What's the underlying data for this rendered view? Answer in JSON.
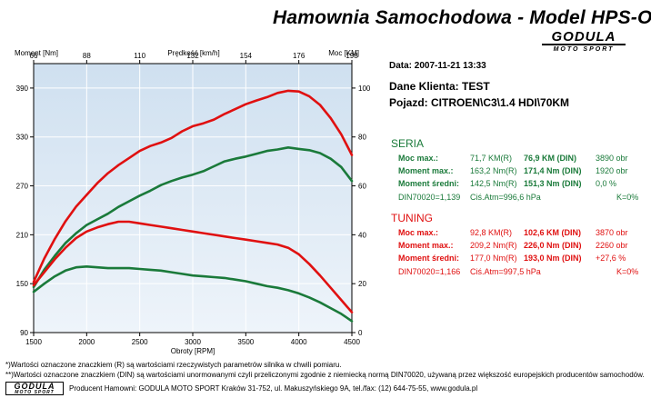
{
  "header": {
    "title": "Hamownia Samochodowa  -  Model HPS-O",
    "brand_main": "GODULA",
    "brand_sub": "MOTO SPORT"
  },
  "info": {
    "date": "Data: 2007-11-21  13:33",
    "client": "Dane Klienta: TEST",
    "vehicle": "Pojazd: CITROEN\\C3\\1.4 HDI\\70KM"
  },
  "seria": {
    "title": "SERIA",
    "rows": [
      {
        "label": "Moc max.:",
        "v1": "71,7 KM(R)",
        "v2": "76,9 KM (DIN)",
        "v3": "3890 obr"
      },
      {
        "label": "Moment max.:",
        "v1": "163,2 Nm(R)",
        "v2": "171,4 Nm (DIN)",
        "v3": "1920 obr"
      },
      {
        "label": "Moment średni:",
        "v1": "142,5 Nm(R)",
        "v2": "151,3 Nm (DIN)",
        "v3": "0,0 %"
      }
    ],
    "din": {
      "a": "DIN70020=1,139",
      "b": "Ciś.Atm=996,6 hPa",
      "c": "K=0%"
    }
  },
  "tuning": {
    "title": "TUNING",
    "rows": [
      {
        "label": "Moc max.:",
        "v1": "92,8 KM(R)",
        "v2": "102,6 KM (DIN)",
        "v3": "3870 obr"
      },
      {
        "label": "Moment max.:",
        "v1": "209,2 Nm(R)",
        "v2": "226,0 Nm (DIN)",
        "v3": "2260 obr"
      },
      {
        "label": "Moment średni:",
        "v1": "177,0 Nm(R)",
        "v2": "193,0 Nm (DIN)",
        "v3": "+27,6 %"
      }
    ],
    "din": {
      "a": "DIN70020=1,166",
      "b": "Ciś.Atm=997,5 hPa",
      "c": "K=0%"
    }
  },
  "footer": {
    "note1": "*)Wartości oznaczone znaczkiem (R) są wartościami rzeczywistych parametrów silnika w chwili pomiaru.",
    "note2": "**)Wartości oznaczone znaczkiem (DIN) są wartościami unormowanymi czyli przeliczonymi zgodnie z niemiecką normą DIN70020, używaną przez większość europejskich producentów samochodów.",
    "logo_main": "GODULA",
    "logo_sub": "MOTO SPORT",
    "producer": "Producent Hamowni: GODULA MOTO SPORT Kraków 31-752, ul. Makuszyńskiego 9A, tel./fax: (12) 644-75-55, www.godula.pl"
  },
  "colors": {
    "seria": "#1a7a3a",
    "tuning": "#e01010",
    "plot_bg_top": "#cfe0f0",
    "plot_bg_bottom": "#eef4fa"
  },
  "chart_data": {
    "type": "line",
    "xlabel": "Obroty [RPM]",
    "xlim": [
      1500,
      4500
    ],
    "xticks": [
      1500,
      2000,
      2500,
      3000,
      3500,
      4000,
      4500
    ],
    "x_top_label": "Prędkość [km/h]",
    "x_top_ticks": [
      "66",
      "88",
      "110",
      "132",
      "154",
      "176",
      "198"
    ],
    "y_left_label": "Moment [Nm]",
    "y_left_lim": [
      90,
      420
    ],
    "y_left_ticks": [
      90,
      150,
      210,
      270,
      330,
      390
    ],
    "y_right_label": "Moc [KM]",
    "y_right_lim": [
      0,
      110
    ],
    "y_right_ticks": [
      0,
      20,
      40,
      60,
      80,
      100
    ],
    "grid": true,
    "x": [
      1500,
      1600,
      1700,
      1800,
      1900,
      2000,
      2100,
      2200,
      2300,
      2400,
      2500,
      2600,
      2700,
      2800,
      2900,
      3000,
      3100,
      3200,
      3300,
      3400,
      3500,
      3600,
      3700,
      3800,
      3900,
      4000,
      4100,
      4200,
      4300,
      4400,
      4500
    ],
    "series": [
      {
        "name": "TUNING",
        "quantity": "power",
        "axis": "right",
        "values": [
          20.7,
          30.3,
          38.3,
          45.5,
          51.5,
          56.3,
          61.1,
          65.2,
          68.5,
          71.4,
          74.3,
          76.3,
          77.7,
          79.6,
          82.3,
          84.4,
          85.6,
          87.1,
          89.4,
          91.4,
          93.4,
          94.9,
          96.3,
          98.0,
          98.9,
          98.6,
          96.6,
          93.1,
          87.7,
          81.1,
          72.6
        ]
      },
      {
        "name": "SERIA",
        "quantity": "power",
        "axis": "right",
        "values": [
          18.6,
          25.7,
          31.4,
          36.6,
          40.6,
          44.0,
          46.3,
          48.6,
          51.4,
          53.7,
          56.0,
          58.0,
          60.3,
          62.0,
          63.4,
          64.6,
          66.0,
          68.0,
          70.0,
          71.1,
          72.0,
          73.1,
          74.3,
          74.9,
          75.7,
          75.1,
          74.6,
          73.4,
          71.1,
          67.7,
          62.0
        ]
      },
      {
        "name": "TUNING",
        "quantity": "torque",
        "axis": "left",
        "values": [
          148,
          164,
          180,
          194,
          206,
          214,
          219,
          223,
          226,
          226,
          224,
          222,
          220,
          218,
          216,
          214,
          212,
          210,
          208,
          206,
          204,
          202,
          200,
          198,
          194,
          186,
          174,
          160,
          145,
          130,
          115
        ]
      },
      {
        "name": "SERIA",
        "quantity": "torque",
        "axis": "left",
        "values": [
          140,
          150,
          159,
          166,
          170,
          171,
          170,
          169,
          169,
          169,
          168,
          167,
          166,
          164,
          162,
          160,
          159,
          158,
          157,
          155,
          153,
          150,
          147,
          145,
          142,
          138,
          133,
          127,
          120,
          113,
          104
        ]
      }
    ]
  }
}
